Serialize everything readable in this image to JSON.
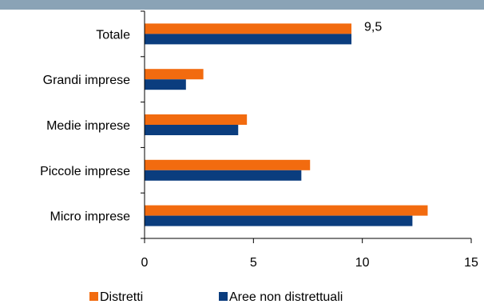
{
  "chart_data": {
    "type": "bar",
    "orientation": "horizontal",
    "categories": [
      "Totale",
      "Grandi imprese",
      "Medie imprese",
      "Piccole imprese",
      "Micro imprese"
    ],
    "series": [
      {
        "name": "Distretti",
        "color": "#f26b0f",
        "values": [
          9.5,
          2.7,
          4.7,
          7.6,
          13.0
        ]
      },
      {
        "name": "Aree non distrettuali",
        "color": "#0b3d7e",
        "values": [
          9.5,
          1.9,
          4.3,
          7.2,
          12.3
        ]
      }
    ],
    "data_labels": [
      {
        "category": "Totale",
        "text": "9,5"
      }
    ],
    "xlim": [
      0,
      15
    ],
    "x_ticks": [
      "0",
      "5",
      "10",
      "15"
    ],
    "legend_position": "bottom",
    "grid": false,
    "title": "",
    "xlabel": "",
    "ylabel": ""
  }
}
